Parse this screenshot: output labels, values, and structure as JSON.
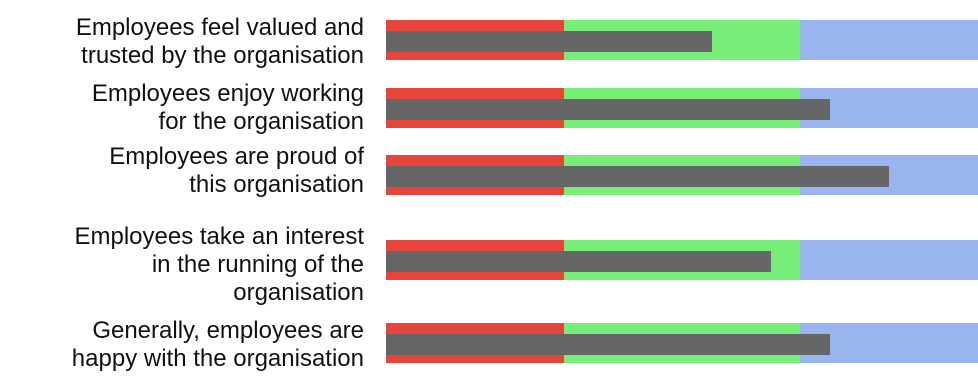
{
  "chart_data": {
    "type": "bar",
    "subtype": "bullet",
    "orientation": "horizontal",
    "categories": [
      "Employees feel valued and trusted by the organisation",
      "Employees enjoy working for the organisation",
      "Employees are proud of this organisation",
      "Employees take an interest in the running of the organisation",
      "Generally, employees are happy with the organisation"
    ],
    "category_lines": [
      [
        "Employees feel valued and",
        "trusted by the organisation"
      ],
      [
        "Employees enjoy working",
        "for the organisation"
      ],
      [
        "Employees are proud of",
        "this organisation"
      ],
      [
        "Employees take an interest",
        "in the running of the",
        "organisation"
      ],
      [
        "Generally, employees are",
        "happy with the organisation"
      ]
    ],
    "values": [
      55,
      75,
      85,
      65,
      75
    ],
    "ranges": [
      {
        "to": 30,
        "color": "#e5453a"
      },
      {
        "to": 70,
        "color": "#77ee77"
      },
      {
        "to": 100,
        "color": "#99b5f0"
      }
    ],
    "xlim": [
      0,
      100
    ],
    "bar_color": "#666666",
    "grid": false,
    "legend": "none",
    "title": "",
    "xlabel": "",
    "ylabel": ""
  }
}
